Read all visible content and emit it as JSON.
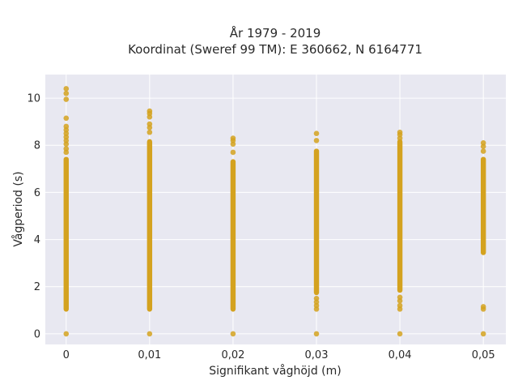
{
  "chart_data": {
    "type": "scatter",
    "title_line1": "År 1979 - 2019",
    "title_line2": "Koordinat (Sweref 99 TM): E 360662, N 6164771",
    "xlabel": "Signifikant våghöjd (m)",
    "ylabel": "Vågperiod (s)",
    "x_ticks": [
      "0",
      "0,01",
      "0,02",
      "0,03",
      "0,04",
      "0,05"
    ],
    "y_ticks": [
      "0",
      "2",
      "4",
      "6",
      "8",
      "10"
    ],
    "xlim": [
      -0.0025,
      0.0527
    ],
    "ylim": [
      -0.45,
      11.0
    ],
    "grid": true,
    "marker_color": "#D4A21F",
    "background_color": "#E8E8F1",
    "series": [
      {
        "x": 0,
        "segments": [
          [
            1.05,
            7.4
          ]
        ],
        "points": [
          0.0,
          7.7,
          7.85,
          8.05,
          8.2,
          8.35,
          8.5,
          8.65,
          8.8,
          9.15,
          9.95,
          10.2,
          10.4
        ]
      },
      {
        "x": 0.01,
        "segments": [
          [
            1.05,
            8.15
          ]
        ],
        "points": [
          0.0,
          8.55,
          8.75,
          8.9,
          9.2,
          9.35,
          9.45
        ]
      },
      {
        "x": 0.02,
        "segments": [
          [
            1.05,
            7.3
          ]
        ],
        "points": [
          0.0,
          7.7,
          8.05,
          8.2,
          8.3
        ]
      },
      {
        "x": 0.03,
        "segments": [
          [
            1.75,
            7.75
          ]
        ],
        "points": [
          0.0,
          1.05,
          1.2,
          1.35,
          1.5,
          8.2,
          8.5
        ]
      },
      {
        "x": 0.04,
        "segments": [
          [
            1.85,
            8.15
          ]
        ],
        "points": [
          0.0,
          1.05,
          1.2,
          1.4,
          1.55,
          8.3,
          8.45,
          8.55
        ]
      },
      {
        "x": 0.05,
        "segments": [
          [
            3.45,
            7.4
          ]
        ],
        "points": [
          0.0,
          1.05,
          1.15,
          7.75,
          7.95,
          8.1
        ]
      }
    ]
  }
}
